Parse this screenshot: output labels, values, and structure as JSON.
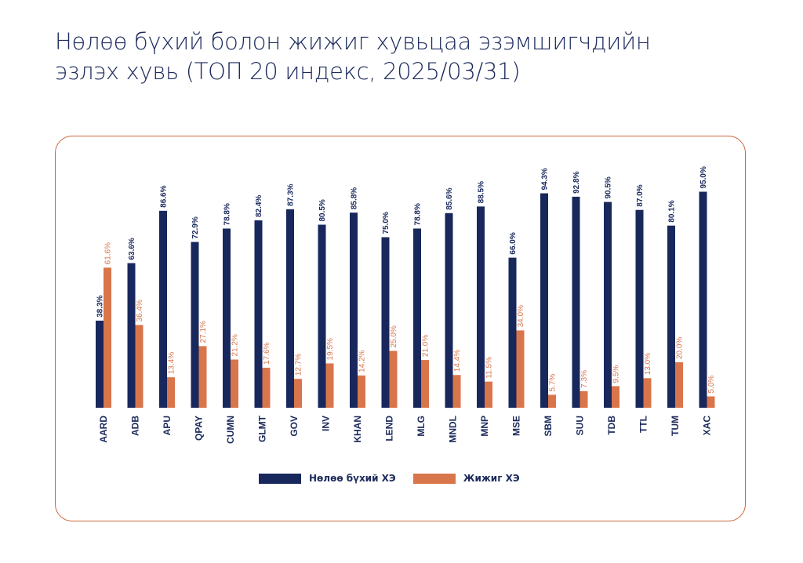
{
  "title_line1": "Нөлөө бүхий болон жижиг хувьцаа эзэмшигчдийн",
  "title_line2": "эзлэх хувь (ТОП 20 индекс, 2025/03/31)",
  "colors": {
    "navy": "#18285c",
    "orange": "#d9754a",
    "border": "#c8683a"
  },
  "chart_data": {
    "type": "bar",
    "categories": [
      "AARD",
      "ADB",
      "APU",
      "QPAY",
      "CUMN",
      "GLMT",
      "GOV",
      "INV",
      "KHAN",
      "LEND",
      "MLG",
      "MNDL",
      "MNP",
      "MSE",
      "SBM",
      "SUU",
      "TDB",
      "TTL",
      "TUM",
      "XAC"
    ],
    "series": [
      {
        "name": "Нөлөө бүхий ХЭ",
        "color": "#18285c",
        "values": [
          38.3,
          63.6,
          86.6,
          72.9,
          78.8,
          82.4,
          87.3,
          80.5,
          85.8,
          75.0,
          78.8,
          85.6,
          88.5,
          66.0,
          94.3,
          92.8,
          90.5,
          87.0,
          80.1,
          95.0
        ],
        "labels": [
          "38.3%",
          "63.6%",
          "86.6%",
          "72.9%",
          "78.8%",
          "82.4%",
          "87.3%",
          "80.5%",
          "85.8%",
          "75.0%",
          "78.8%",
          "85.6%",
          "88.5%",
          "66.0%",
          "94.3%",
          "92.8%",
          "90.5%",
          "87.0%",
          "80.1%",
          "95.0%"
        ]
      },
      {
        "name": "Жижиг ХЭ",
        "color": "#d9754a",
        "values": [
          61.6,
          36.4,
          13.4,
          27.1,
          21.2,
          17.6,
          12.7,
          19.5,
          14.2,
          25.0,
          21.0,
          14.4,
          11.5,
          34.0,
          5.7,
          7.3,
          9.5,
          13.0,
          20.0,
          5.0
        ],
        "labels": [
          "61.6%",
          "36.4%",
          "13.4%",
          "27.1%",
          "21.2%",
          "17.6%",
          "12.7%",
          "19.5%",
          "14.2%",
          "25.0%",
          "21.0%",
          "14.4%",
          "11.5%",
          "34.0%",
          "5.7%",
          "7.3%",
          "9.5%",
          "13.0%",
          "20.0%",
          "5.0%"
        ]
      }
    ],
    "ylim": [
      0,
      100
    ],
    "grid": false,
    "legend_position": "bottom-center"
  }
}
